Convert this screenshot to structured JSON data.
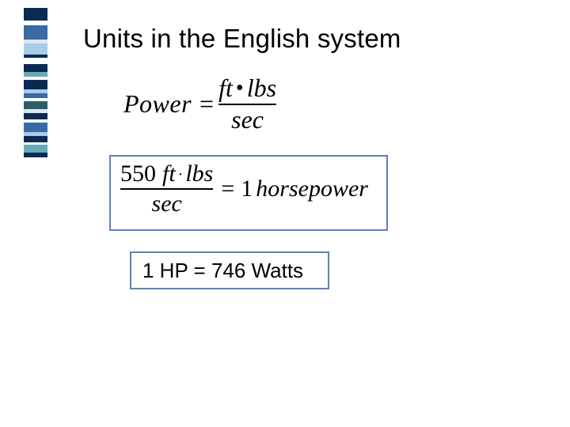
{
  "colors": {
    "box_border": "#6180b8",
    "navy": "#0a2a54",
    "mid_blue": "#3a6aa6",
    "light_blue": "#a7cce8",
    "teal": "#6aa9b8",
    "dark_teal": "#2d5e68",
    "white": "#ffffff",
    "pale": "#dbe9f1"
  },
  "left_stripes": [
    {
      "h": 16,
      "c": "navy"
    },
    {
      "h": 6,
      "c": "white"
    },
    {
      "h": 18,
      "c": "mid_blue"
    },
    {
      "h": 5,
      "c": "pale"
    },
    {
      "h": 14,
      "c": "light_blue"
    },
    {
      "h": 4,
      "c": "navy"
    },
    {
      "h": 8,
      "c": "white"
    },
    {
      "h": 10,
      "c": "navy"
    },
    {
      "h": 6,
      "c": "teal"
    },
    {
      "h": 4,
      "c": "white"
    },
    {
      "h": 12,
      "c": "navy"
    },
    {
      "h": 5,
      "c": "light_blue"
    },
    {
      "h": 6,
      "c": "mid_blue"
    },
    {
      "h": 4,
      "c": "white"
    },
    {
      "h": 10,
      "c": "dark_teal"
    },
    {
      "h": 5,
      "c": "pale"
    },
    {
      "h": 8,
      "c": "navy"
    },
    {
      "h": 4,
      "c": "white"
    },
    {
      "h": 12,
      "c": "mid_blue"
    },
    {
      "h": 5,
      "c": "light_blue"
    },
    {
      "h": 8,
      "c": "navy"
    },
    {
      "h": 3,
      "c": "white"
    },
    {
      "h": 10,
      "c": "teal"
    },
    {
      "h": 6,
      "c": "navy"
    }
  ],
  "title": "Units in the English system",
  "equation1": {
    "lhs": "Power",
    "numerator_left": "ft",
    "numerator_right": "lbs",
    "denominator": "sec"
  },
  "equation2": {
    "num_value": "550",
    "num_unit_left": "ft",
    "num_unit_right": "lbs",
    "denominator": "sec",
    "rhs_value": "1",
    "rhs_unit": "horsepower"
  },
  "conversion": "1 HP = 746 Watts"
}
